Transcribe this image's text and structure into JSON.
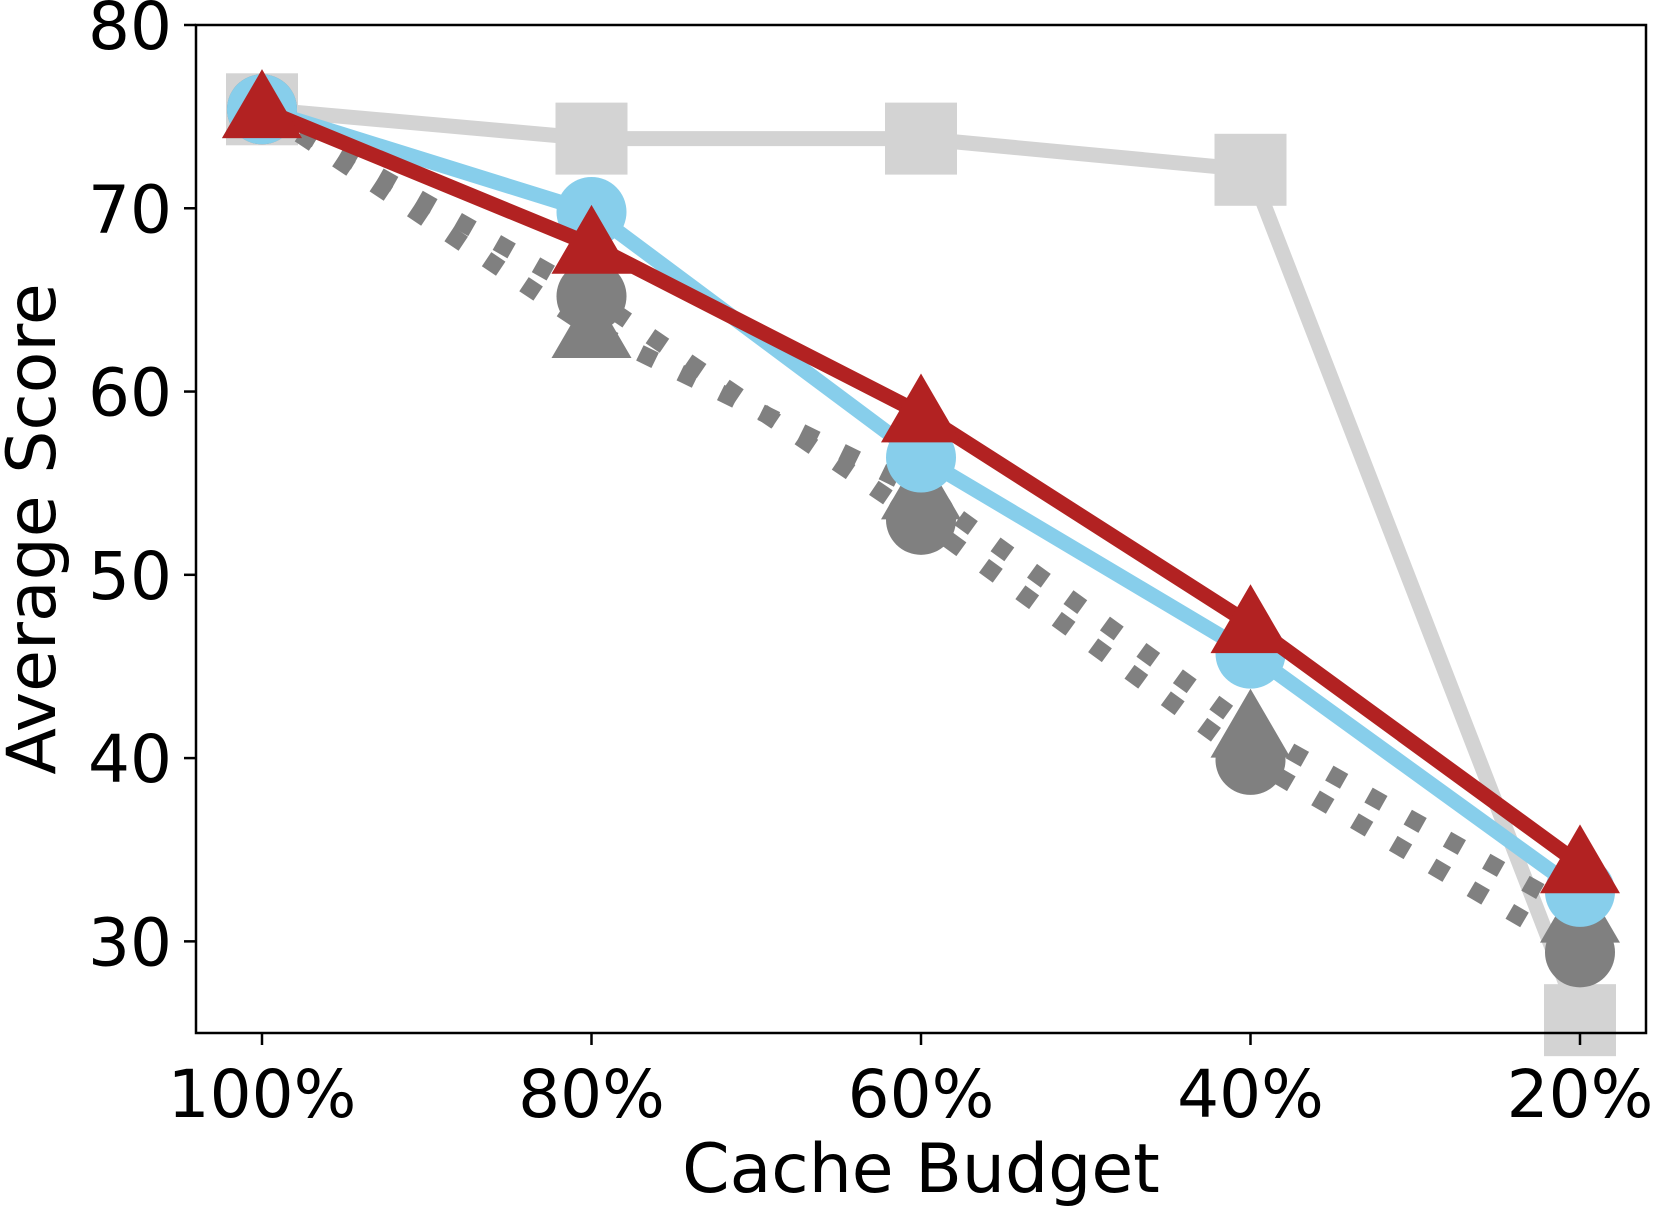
{
  "chart_data": {
    "type": "line",
    "title": "",
    "xlabel": "Cache Budget",
    "ylabel": "Average Score",
    "categories": [
      "100%",
      "80%",
      "60%",
      "40%",
      "20%"
    ],
    "yticks": [
      30,
      40,
      50,
      60,
      70,
      80
    ],
    "ylim": [
      25,
      80
    ],
    "grid": false,
    "legend": "none",
    "series": [
      {
        "color": "#d3d3d3",
        "line_style": "solid",
        "marker": "square",
        "values": [
          75.4,
          73.8,
          73.8,
          72.1,
          25.7
        ]
      },
      {
        "color": "#808080",
        "line_style": "dotted",
        "marker": "triangle",
        "values": [
          75.4,
          63.4,
          54.6,
          41.6,
          31.5
        ]
      },
      {
        "color": "#808080",
        "line_style": "dotted",
        "marker": "circle",
        "values": [
          75.4,
          65.2,
          53.0,
          39.9,
          29.4
        ]
      },
      {
        "color": "#87ceeb",
        "line_style": "solid",
        "marker": "circle",
        "values": [
          75.4,
          69.8,
          56.4,
          45.7,
          32.7
        ]
      },
      {
        "color": "#b22222",
        "line_style": "solid",
        "marker": "triangle",
        "values": [
          75.4,
          68.0,
          58.8,
          47.3,
          34.2
        ]
      }
    ]
  }
}
